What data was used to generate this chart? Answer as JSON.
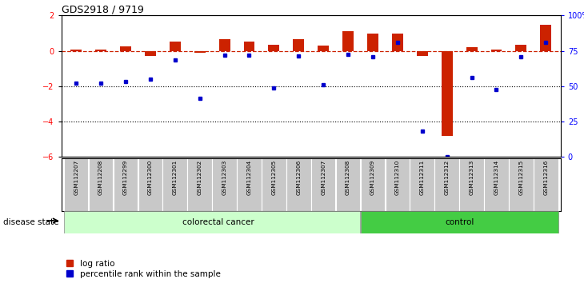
{
  "title": "GDS2918 / 9719",
  "samples": [
    "GSM112207",
    "GSM112208",
    "GSM112299",
    "GSM112300",
    "GSM112301",
    "GSM112302",
    "GSM112303",
    "GSM112304",
    "GSM112305",
    "GSM112306",
    "GSM112307",
    "GSM112308",
    "GSM112309",
    "GSM112310",
    "GSM112311",
    "GSM112312",
    "GSM112313",
    "GSM112314",
    "GSM112315",
    "GSM112316"
  ],
  "log_ratio": [
    0.1,
    0.1,
    0.25,
    -0.3,
    0.55,
    -0.1,
    0.65,
    0.55,
    0.35,
    0.65,
    0.3,
    1.1,
    1.0,
    1.0,
    -0.3,
    -4.8,
    0.2,
    0.1,
    0.35,
    1.5
  ],
  "percentile_rank": [
    -1.8,
    -1.8,
    -1.75,
    -1.6,
    -0.5,
    -2.7,
    -0.25,
    -0.25,
    -2.1,
    -0.3,
    -1.9,
    -0.2,
    -0.35,
    0.5,
    -4.55,
    -6.0,
    -1.5,
    -2.2,
    -0.35,
    0.5
  ],
  "colorectal_count": 12,
  "control_count": 8,
  "log_ratio_color": "#CC2200",
  "percentile_rank_color": "#0000CC",
  "colorectal_color": "#CCFFCC",
  "control_color": "#44CC44",
  "ylim_left": [
    -6,
    2
  ],
  "yticks_left": [
    2,
    0,
    -2,
    -4,
    -6
  ],
  "right_ytick_positions": [
    -6,
    -4,
    -2,
    0,
    2
  ],
  "right_ytick_labels": [
    "0",
    "25",
    "50",
    "75",
    "100%"
  ]
}
